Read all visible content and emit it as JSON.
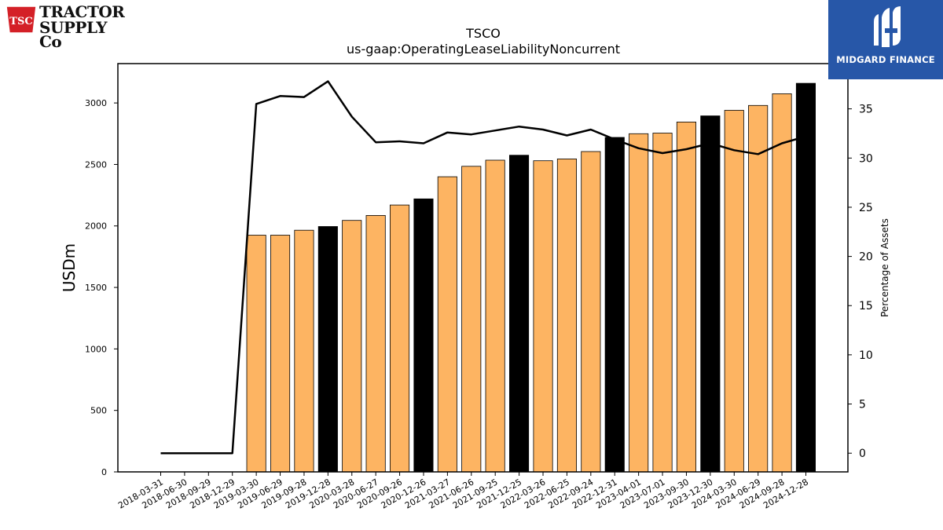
{
  "header": {
    "title": "TSCO",
    "subtitle": "us-gaap:OperatingLeaseLiabilityNoncurrent"
  },
  "logos": {
    "company_line1": "TRACTOR",
    "company_line2": "SUPPLY Co",
    "company_badge": "TSC",
    "brand_name": "MIDGARD FINANCE"
  },
  "colors": {
    "bar_default": "#fdb462",
    "bar_highlight": "#000000",
    "line": "#000000",
    "brand_bg": "#2757a8",
    "company_red": "#d42027"
  },
  "chart_data": {
    "type": "bar",
    "categories": [
      "2018-03-31",
      "2018-06-30",
      "2018-09-29",
      "2018-12-29",
      "2019-03-30",
      "2019-06-29",
      "2019-09-28",
      "2019-12-28",
      "2020-03-28",
      "2020-06-27",
      "2020-09-26",
      "2020-12-26",
      "2021-03-27",
      "2021-06-26",
      "2021-09-25",
      "2021-12-25",
      "2022-03-26",
      "2022-06-25",
      "2022-09-24",
      "2022-12-31",
      "2023-04-01",
      "2023-07-01",
      "2023-09-30",
      "2023-12-30",
      "2024-03-30",
      "2024-06-29",
      "2024-09-28",
      "2024-12-28"
    ],
    "series": [
      {
        "axis": "left",
        "type": "bar",
        "values": [
          0,
          0,
          0,
          0,
          1925,
          1925,
          1965,
          1995,
          2045,
          2085,
          2170,
          2220,
          2400,
          2485,
          2535,
          2575,
          2530,
          2545,
          2605,
          2720,
          2750,
          2755,
          2845,
          2895,
          2940,
          2980,
          3075,
          3160
        ],
        "highlight": [
          false,
          false,
          false,
          true,
          false,
          false,
          false,
          true,
          false,
          false,
          false,
          true,
          false,
          false,
          false,
          true,
          false,
          false,
          false,
          true,
          false,
          false,
          false,
          true,
          false,
          false,
          false,
          true
        ]
      },
      {
        "axis": "right",
        "type": "line",
        "values": [
          0,
          0,
          0,
          0,
          35.5,
          36.3,
          36.2,
          37.8,
          34.2,
          31.6,
          31.7,
          31.5,
          32.6,
          32.4,
          32.8,
          33.2,
          32.9,
          32.3,
          32.9,
          31.9,
          31.0,
          30.5,
          30.9,
          31.5,
          30.8,
          30.4,
          31.5,
          32.2
        ]
      }
    ],
    "ylabel": "USDm",
    "y2label": "Percentage of Assets",
    "ylim": [
      0,
      3320
    ],
    "y2lim": [
      -1.9,
      39.6
    ],
    "yticks": [
      0,
      500,
      1000,
      1500,
      2000,
      2500,
      3000
    ],
    "y2ticks": [
      0,
      5,
      10,
      15,
      20,
      25,
      30,
      35
    ],
    "grid": false,
    "legend": "none"
  }
}
